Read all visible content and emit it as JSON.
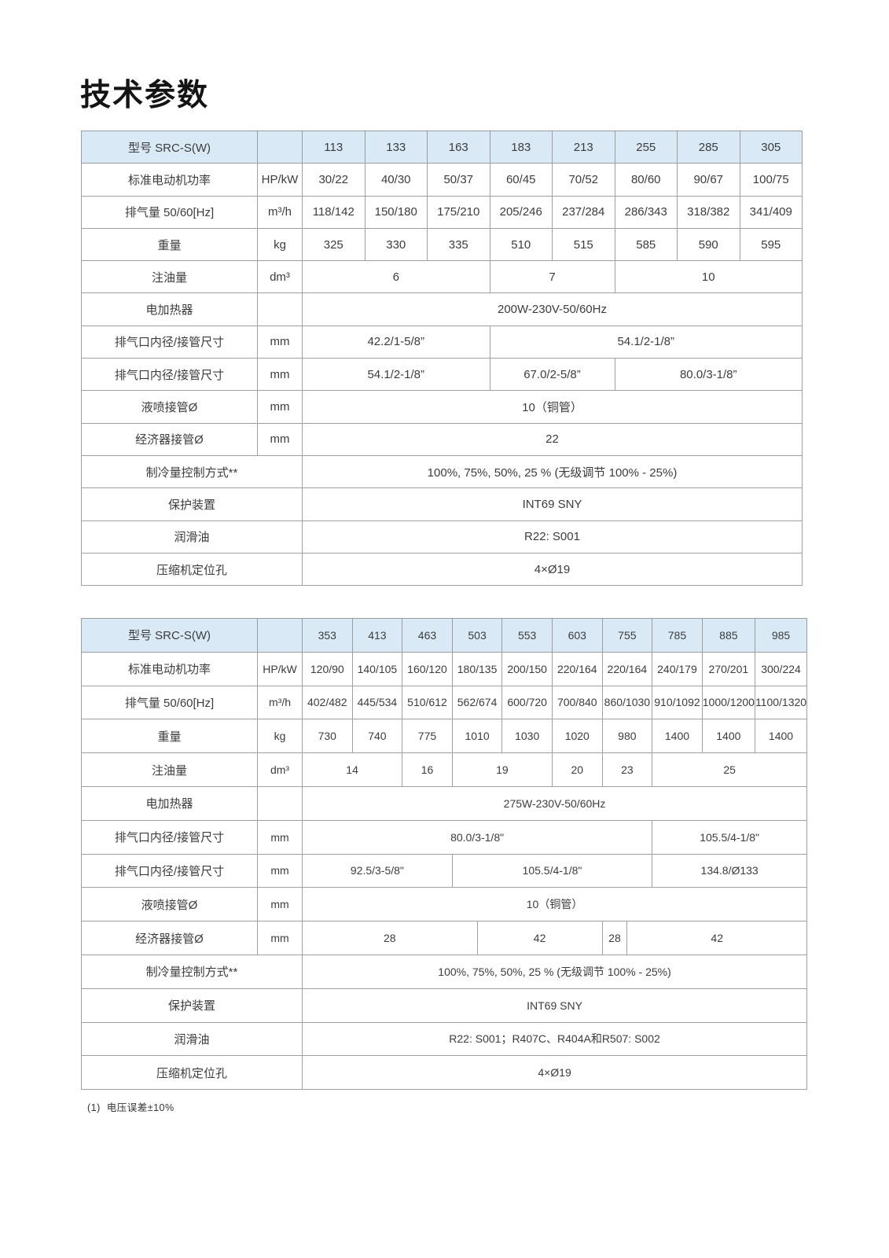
{
  "page": {
    "title": "技术参数",
    "footnote": "(1)  电压误差±10%"
  },
  "tables": [
    {
      "name": "SRC-S(W) 113-305",
      "header": {
        "label": "型号 SRC-S(W)",
        "models": [
          "113",
          "133",
          "163",
          "183",
          "213",
          "255",
          "285",
          "305"
        ]
      },
      "rows": [
        {
          "label": "标准电动机功率",
          "unit": "HP/kW",
          "cells": [
            {
              "text": "30/22",
              "span": 1
            },
            {
              "text": "40/30",
              "span": 1
            },
            {
              "text": "50/37",
              "span": 1
            },
            {
              "text": "60/45",
              "span": 1
            },
            {
              "text": "70/52",
              "span": 1
            },
            {
              "text": "80/60",
              "span": 1
            },
            {
              "text": "90/67",
              "span": 1
            },
            {
              "text": "100/75",
              "span": 1
            }
          ]
        },
        {
          "label": "排气量 50/60[Hz]",
          "unit": "m³/h",
          "cells": [
            {
              "text": "118/142",
              "span": 1
            },
            {
              "text": "150/180",
              "span": 1
            },
            {
              "text": "175/210",
              "span": 1
            },
            {
              "text": "205/246",
              "span": 1
            },
            {
              "text": "237/284",
              "span": 1
            },
            {
              "text": "286/343",
              "span": 1
            },
            {
              "text": "318/382",
              "span": 1
            },
            {
              "text": "341/409",
              "span": 1
            }
          ]
        },
        {
          "label": "重量",
          "unit": "kg",
          "cells": [
            {
              "text": "325",
              "span": 1
            },
            {
              "text": "330",
              "span": 1
            },
            {
              "text": "335",
              "span": 1
            },
            {
              "text": "510",
              "span": 1
            },
            {
              "text": "515",
              "span": 1
            },
            {
              "text": "585",
              "span": 1
            },
            {
              "text": "590",
              "span": 1
            },
            {
              "text": "595",
              "span": 1
            }
          ]
        },
        {
          "label": "注油量",
          "unit": "dm³",
          "cells": [
            {
              "text": "6",
              "span": 3
            },
            {
              "text": "7",
              "span": 2
            },
            {
              "text": "10",
              "span": 3
            }
          ]
        },
        {
          "label": "电加热器",
          "unit": "",
          "cells": [
            {
              "text": "200W-230V-50/60Hz",
              "span": 8
            }
          ]
        },
        {
          "label": "排气口内径/接管尺寸",
          "unit": "mm",
          "cells": [
            {
              "text": "42.2/1-5/8”",
              "span": 3
            },
            {
              "text": "54.1/2-1/8”",
              "span": 5
            }
          ]
        },
        {
          "label": "排气口内径/接管尺寸",
          "unit": "mm",
          "cells": [
            {
              "text": "54.1/2-1/8”",
              "span": 3
            },
            {
              "text": "67.0/2-5/8”",
              "span": 2
            },
            {
              "text": "80.0/3-1/8”",
              "span": 3
            }
          ]
        },
        {
          "label": "液喷接管Ø",
          "unit": "mm",
          "cells": [
            {
              "text": "10（铜管）",
              "span": 8
            }
          ]
        },
        {
          "label": "经济器接管Ø",
          "unit": "mm",
          "cells": [
            {
              "text": "22",
              "span": 8
            }
          ]
        },
        {
          "label": "制冷量控制方式**",
          "unit": null,
          "cells": [
            {
              "text": "100%, 75%, 50%, 25 % (无级调节 100% - 25%)",
              "span": 8
            }
          ]
        },
        {
          "label": "保护装置",
          "unit": null,
          "cells": [
            {
              "text": "INT69 SNY",
              "span": 8
            }
          ]
        },
        {
          "label": "润滑油",
          "unit": null,
          "cells": [
            {
              "text": "R22: S001",
              "span": 8
            }
          ]
        },
        {
          "label": "压缩机定位孔",
          "unit": null,
          "cells": [
            {
              "text": "4×Ø19",
              "span": 8
            }
          ]
        }
      ]
    },
    {
      "name": "SRC-S(W) 353-985",
      "header": {
        "label": "型号 SRC-S(W)",
        "models": [
          "353",
          "413",
          "463",
          "503",
          "553",
          "603",
          "755",
          "785",
          "885",
          "985"
        ]
      },
      "rows": [
        {
          "label": "标准电动机功率",
          "unit": "HP/kW",
          "cells": [
            {
              "text": "120/90",
              "span": 1
            },
            {
              "text": "140/105",
              "span": 1
            },
            {
              "text": "160/120",
              "span": 1
            },
            {
              "text": "180/135",
              "span": 1
            },
            {
              "text": "200/150",
              "span": 1
            },
            {
              "text": "220/164",
              "span": 1
            },
            {
              "text": "220/164",
              "span": 1
            },
            {
              "text": "240/179",
              "span": 1
            },
            {
              "text": "270/201",
              "span": 1
            },
            {
              "text": "300/224",
              "span": 1
            }
          ]
        },
        {
          "label": "排气量 50/60[Hz]",
          "unit": "m³/h",
          "cells": [
            {
              "text": "402/482",
              "span": 1
            },
            {
              "text": "445/534",
              "span": 1
            },
            {
              "text": "510/612",
              "span": 1
            },
            {
              "text": "562/674",
              "span": 1
            },
            {
              "text": "600/720",
              "span": 1
            },
            {
              "text": "700/840",
              "span": 1
            },
            {
              "text": "860/1030",
              "span": 1
            },
            {
              "text": "910/1092",
              "span": 1
            },
            {
              "text": "1000/1200",
              "span": 1
            },
            {
              "text": "1100/1320",
              "span": 1
            }
          ]
        },
        {
          "label": "重量",
          "unit": "kg",
          "cells": [
            {
              "text": "730",
              "span": 1
            },
            {
              "text": "740",
              "span": 1
            },
            {
              "text": "775",
              "span": 1
            },
            {
              "text": "1010",
              "span": 1
            },
            {
              "text": "1030",
              "span": 1
            },
            {
              "text": "1020",
              "span": 1
            },
            {
              "text": "980",
              "span": 1
            },
            {
              "text": "1400",
              "span": 1
            },
            {
              "text": "1400",
              "span": 1
            },
            {
              "text": "1400",
              "span": 1
            }
          ]
        },
        {
          "label": "注油量",
          "unit": "dm³",
          "cells": [
            {
              "text": "14",
              "span": 2
            },
            {
              "text": "16",
              "span": 1
            },
            {
              "text": "19",
              "span": 2
            },
            {
              "text": "20",
              "span": 1
            },
            {
              "text": "23",
              "span": 1
            },
            {
              "text": "25",
              "span": 3
            }
          ]
        },
        {
          "label": "电加热器",
          "unit": "",
          "cells": [
            {
              "text": "275W-230V-50/60Hz",
              "span": 10
            }
          ]
        },
        {
          "label": "排气口内径/接管尺寸",
          "unit": "mm",
          "cells": [
            {
              "text": "80.0/3-1/8\"",
              "span": 7
            },
            {
              "text": "105.5/4-1/8\"",
              "span": 3
            }
          ]
        },
        {
          "label": "排气口内径/接管尺寸",
          "unit": "mm",
          "cells": [
            {
              "text": "92.5/3-5/8\"",
              "span": 3
            },
            {
              "text": "105.5/4-1/8\"",
              "span": 4
            },
            {
              "text": "134.8/Ø133",
              "span": 3
            }
          ]
        },
        {
          "label": "液喷接管Ø",
          "unit": "mm",
          "cells": [
            {
              "text": "10（铜管）",
              "span": 10
            }
          ]
        },
        {
          "label": "经济器接管Ø",
          "unit": "mm",
          "cells": [
            {
              "text": "28",
              "span": 3.5
            },
            {
              "text": "42",
              "span": 2.5
            },
            {
              "text": "28",
              "span": 0.5
            },
            {
              "text": "42",
              "span": 3.5
            }
          ]
        },
        {
          "label": "制冷量控制方式**",
          "unit": null,
          "cells": [
            {
              "text": "100%, 75%, 50%, 25 % (无级调节 100% - 25%)",
              "span": 10
            }
          ]
        },
        {
          "label": "保护装置",
          "unit": null,
          "cells": [
            {
              "text": "INT69 SNY",
              "span": 10
            }
          ]
        },
        {
          "label": "润滑油",
          "unit": null,
          "cells": [
            {
              "text": "R22: S001；R407C、R404A和R507: S002",
              "span": 10
            }
          ]
        },
        {
          "label": "压缩机定位孔",
          "unit": null,
          "cells": [
            {
              "text": "4×Ø19",
              "span": 10
            }
          ]
        }
      ]
    }
  ]
}
